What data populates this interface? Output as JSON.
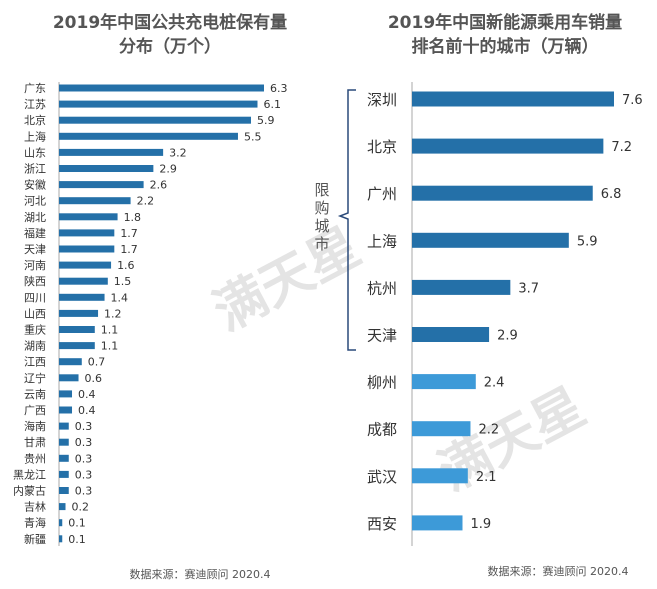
{
  "chart_data": [
    {
      "type": "bar",
      "orientation": "horizontal",
      "title_lines": [
        "2019年中国公共充电桩保有量",
        "分布（万个）"
      ],
      "categories": [
        "广东",
        "江苏",
        "北京",
        "上海",
        "山东",
        "浙江",
        "安徽",
        "河北",
        "湖北",
        "福建",
        "天津",
        "河南",
        "陕西",
        "四川",
        "山西",
        "重庆",
        "湖南",
        "江西",
        "辽宁",
        "云南",
        "广西",
        "海南",
        "甘肃",
        "贵州",
        "黑龙江",
        "内蒙古",
        "吉林",
        "青海",
        "新疆"
      ],
      "values": [
        6.3,
        6.1,
        5.9,
        5.5,
        3.2,
        2.9,
        2.6,
        2.2,
        1.8,
        1.7,
        1.7,
        1.6,
        1.5,
        1.4,
        1.2,
        1.1,
        1.1,
        0.7,
        0.6,
        0.4,
        0.4,
        0.3,
        0.3,
        0.3,
        0.3,
        0.3,
        0.2,
        0.1,
        0.1
      ],
      "value_labels": [
        "6.3",
        "6.1",
        "5.9",
        "5.5",
        "3.2",
        "2.9",
        "2.6",
        "2.2",
        "1.8",
        "1.7",
        "1.7",
        "1.6",
        "1.5",
        "1.4",
        "1.2",
        "1.1",
        "1.1",
        "0.7",
        "0.6",
        "0.4",
        "0.4",
        "0.3",
        "0.3",
        "0.3",
        "0.3",
        "0.3",
        "0.2",
        "0.1",
        "0.1"
      ],
      "source": "数据来源：赛迪顾问 2020.4",
      "bar_color": "#2470a8",
      "xlim": [
        0,
        6.3
      ]
    },
    {
      "type": "bar",
      "orientation": "horizontal",
      "title_lines": [
        "2019年中国新能源乘用车销量",
        "排名前十的城市（万辆）"
      ],
      "categories": [
        "深圳",
        "北京",
        "广州",
        "上海",
        "杭州",
        "天津",
        "柳州",
        "成都",
        "武汉",
        "西安"
      ],
      "values": [
        7.6,
        7.2,
        6.8,
        5.9,
        3.7,
        2.9,
        2.4,
        2.2,
        2.1,
        1.9
      ],
      "value_labels": [
        "7.6",
        "7.2",
        "6.8",
        "5.9",
        "3.7",
        "2.9",
        "2.4",
        "2.2",
        "2.1",
        "1.9"
      ],
      "restricted_count": 6,
      "restricted_label_chars": [
        "限",
        "购",
        "城",
        "市"
      ],
      "source": "数据来源：赛迪顾问 2020.4",
      "bar_color_restricted": "#2470a8",
      "bar_color_other": "#3d9ad8",
      "xlim": [
        0,
        7.6
      ]
    }
  ],
  "watermark": "满天星",
  "colors": {
    "watermark": "#e4e4e4",
    "axis": "#aaaaaa",
    "bracket": "#2a4a7a"
  }
}
